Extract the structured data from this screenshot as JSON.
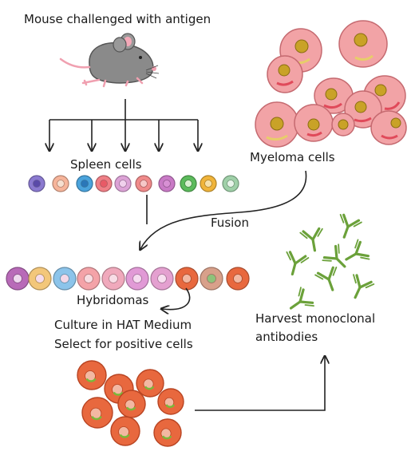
{
  "labels": {
    "mouse": "Mouse challenged with antigen",
    "spleen": "Spleen cells",
    "myeloma": "Myeloma cells",
    "fusion": "Fusion",
    "hybridomas": "Hybridomas",
    "culture_line1": "Culture in HAT Medium",
    "culture_line2": "Select for positive cells",
    "harvest_line1": "Harvest monoclonal",
    "harvest_line2": "antibodies"
  },
  "colors": {
    "arrow": "#222222",
    "myeloma_fill": "#f2a3a6",
    "myeloma_nucleus": "#c9a227",
    "hybridoma_culture": "#e8683e",
    "antibody": "#6ba13a",
    "mouse_body": "#8a8a8a"
  },
  "spleen_cells": [
    {
      "fill": "#8b7ad0",
      "nucleus": "#5a4aa8"
    },
    {
      "fill": "#f6b49a",
      "nucleus": "#f6dfd0"
    },
    {
      "fill": "#4aa3dc",
      "nucleus": "#2a77b8"
    },
    {
      "fill": "#ef7f86",
      "nucleus": "#e85a66"
    },
    {
      "fill": "#dca2d6",
      "nucleus": "#f0d0ec"
    },
    {
      "fill": "#f08a8a",
      "nucleus": "#f6c8c8"
    },
    {
      "fill": "#c97ac6",
      "nucleus": "#d890d4"
    },
    {
      "fill": "#5cbb5c",
      "nucleus": "#d8f0d0"
    },
    {
      "fill": "#f0b43a",
      "nucleus": "#f6e0a8"
    },
    {
      "fill": "#9fd0a8",
      "nucleus": "#e8f4ea"
    }
  ],
  "hybridoma_cells": [
    {
      "fill": "#b86ab8",
      "nucleus": "#eed8ee"
    },
    {
      "fill": "#f3c77a",
      "nucleus": "#f6dcea"
    },
    {
      "fill": "#8cc4ea",
      "nucleus": "#f3d8e8"
    },
    {
      "fill": "#f4a3a8",
      "nucleus": "#f8dde2"
    },
    {
      "fill": "#f0a9bc",
      "nucleus": "#f8dde6"
    },
    {
      "fill": "#e19ad6",
      "nucleus": "#f6dcf0"
    },
    {
      "fill": "#e4a0d0",
      "nucleus": "#f8dff0"
    },
    {
      "fill": "#e8683e",
      "nucleus": "#f3b8a2"
    },
    {
      "fill": "#d8a08a",
      "nucleus": "#8ec27a"
    },
    {
      "fill": "#e8683e",
      "nucleus": "#f3b8a2"
    }
  ]
}
